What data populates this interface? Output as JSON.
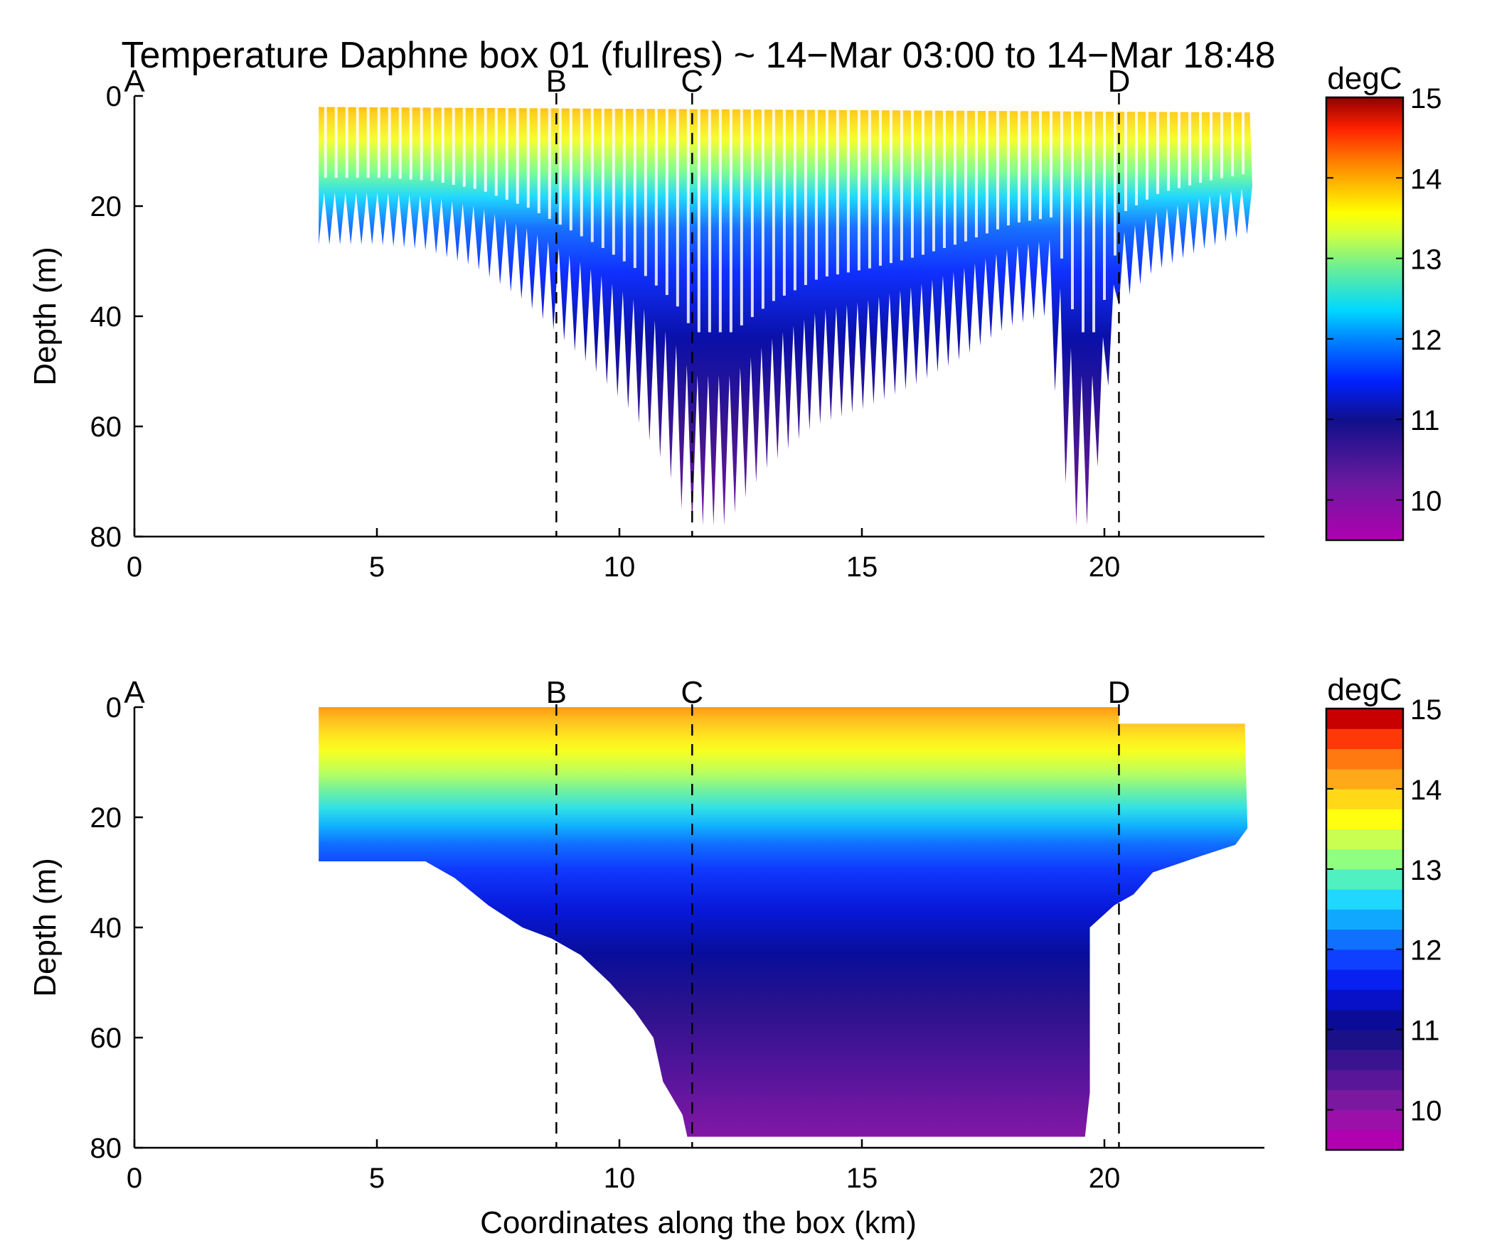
{
  "title": "Temperature Daphne box 01 (fullres) ~ 14−Mar 03:00 to 14−Mar 18:48",
  "chart_data": [
    {
      "type": "scatter",
      "panel": "top",
      "description_type": "glider section (raw points)",
      "xlabel": "",
      "ylabel": "Depth (m)",
      "xlim": [
        0,
        23.3
      ],
      "ylim": [
        80,
        0
      ],
      "x_ticks": [
        "0",
        "5",
        "10",
        "15",
        "20"
      ],
      "y_ticks": [
        "0",
        "20",
        "40",
        "60",
        "80"
      ],
      "colorbar": {
        "unit": "degC",
        "range": [
          9.5,
          15
        ],
        "ticks": [
          "10",
          "11",
          "12",
          "13",
          "14",
          "15"
        ],
        "colormap": "jet-like"
      },
      "section_marks": [
        {
          "label": "A",
          "x": 0
        },
        {
          "label": "B",
          "x": 8.7
        },
        {
          "label": "C",
          "x": 11.5
        },
        {
          "label": "D",
          "x": 20.3
        }
      ],
      "profile_bottom_depth": [
        {
          "x": 3.8,
          "depth": 27
        },
        {
          "x": 5.0,
          "depth": 27
        },
        {
          "x": 6.0,
          "depth": 28
        },
        {
          "x": 7.0,
          "depth": 31
        },
        {
          "x": 8.0,
          "depth": 37
        },
        {
          "x": 8.7,
          "depth": 43
        },
        {
          "x": 9.5,
          "depth": 50
        },
        {
          "x": 10.3,
          "depth": 58
        },
        {
          "x": 11.0,
          "depth": 68
        },
        {
          "x": 11.4,
          "depth": 78
        },
        {
          "x": 11.8,
          "depth": 78
        },
        {
          "x": 12.2,
          "depth": 78
        },
        {
          "x": 12.6,
          "depth": 73
        },
        {
          "x": 13.0,
          "depth": 68
        },
        {
          "x": 14.0,
          "depth": 60
        },
        {
          "x": 15.0,
          "depth": 57
        },
        {
          "x": 16.0,
          "depth": 53
        },
        {
          "x": 17.0,
          "depth": 48
        },
        {
          "x": 18.0,
          "depth": 42
        },
        {
          "x": 18.8,
          "depth": 40
        },
        {
          "x": 19.3,
          "depth": 78
        },
        {
          "x": 19.7,
          "depth": 78
        },
        {
          "x": 20.3,
          "depth": 38
        },
        {
          "x": 21.0,
          "depth": 32
        },
        {
          "x": 22.0,
          "depth": 28
        },
        {
          "x": 23.0,
          "depth": 25
        }
      ]
    },
    {
      "type": "heatmap",
      "panel": "bottom",
      "description_type": "interpolated filled contour",
      "xlabel": "Coordinates along the box (km)",
      "ylabel": "Depth (m)",
      "xlim": [
        0,
        23.3
      ],
      "ylim": [
        80,
        0
      ],
      "x_ticks": [
        "0",
        "5",
        "10",
        "15",
        "20"
      ],
      "y_ticks": [
        "0",
        "20",
        "40",
        "60",
        "80"
      ],
      "colorbar": {
        "unit": "degC",
        "range": [
          9.5,
          15
        ],
        "ticks": [
          "10",
          "11",
          "12",
          "13",
          "14",
          "15"
        ],
        "levels": 22
      },
      "section_marks": [
        {
          "label": "A",
          "x": 0
        },
        {
          "label": "B",
          "x": 8.7
        },
        {
          "label": "C",
          "x": 11.5
        },
        {
          "label": "D",
          "x": 20.3
        }
      ],
      "surface_temperature_approx": [
        {
          "x": 4,
          "temp": 14.0
        },
        {
          "x": 8,
          "temp": 14.2
        },
        {
          "x": 10,
          "temp": 13.7
        },
        {
          "x": 13,
          "temp": 14.0
        },
        {
          "x": 16,
          "temp": 13.5
        },
        {
          "x": 20,
          "temp": 13.4
        },
        {
          "x": 23,
          "temp": 13.3
        }
      ],
      "isotherm_depths_approx": {
        "12C": [
          {
            "x": 4,
            "depth": 24
          },
          {
            "x": 8,
            "depth": 27
          },
          {
            "x": 12,
            "depth": 30
          },
          {
            "x": 16,
            "depth": 24
          },
          {
            "x": 20,
            "depth": 18
          },
          {
            "x": 23,
            "depth": 22
          }
        ],
        "11C": [
          {
            "x": 6,
            "depth": 29
          },
          {
            "x": 10,
            "depth": 35
          },
          {
            "x": 13,
            "depth": 42
          },
          {
            "x": 17,
            "depth": 40
          },
          {
            "x": 20,
            "depth": 36
          }
        ],
        "10.5C": [
          {
            "x": 9,
            "depth": 42
          },
          {
            "x": 12,
            "depth": 55
          },
          {
            "x": 15,
            "depth": 55
          },
          {
            "x": 19,
            "depth": 52
          }
        ]
      }
    }
  ]
}
